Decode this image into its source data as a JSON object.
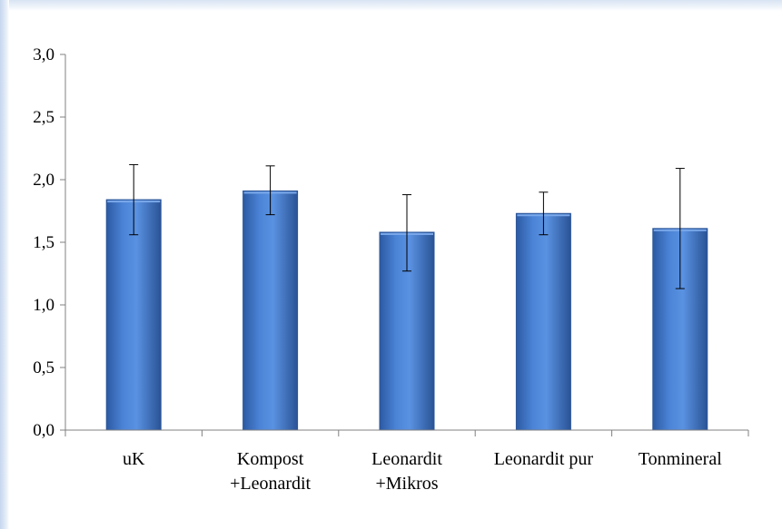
{
  "chart_data": {
    "type": "bar",
    "categories": [
      [
        "uK"
      ],
      [
        "Kompost",
        "+Leonardit"
      ],
      [
        "Leonardit",
        "+Mikros"
      ],
      [
        "Leonardit pur"
      ],
      [
        "Tonmineral"
      ]
    ],
    "values": [
      1.84,
      1.91,
      1.58,
      1.73,
      1.61
    ],
    "error_high": [
      2.12,
      2.11,
      1.88,
      1.9,
      2.09
    ],
    "error_low": [
      1.56,
      1.72,
      1.27,
      1.56,
      1.13
    ],
    "yticks": [
      "3,0",
      "2,5",
      "2,0",
      "1,5",
      "1,0",
      "0,5",
      "0,0"
    ],
    "ylim": [
      0,
      3
    ],
    "title": "",
    "xlabel": "",
    "ylabel": "",
    "grid": false,
    "bar_color": "#3f72c4",
    "bar_edge_color": "#2b5598"
  }
}
